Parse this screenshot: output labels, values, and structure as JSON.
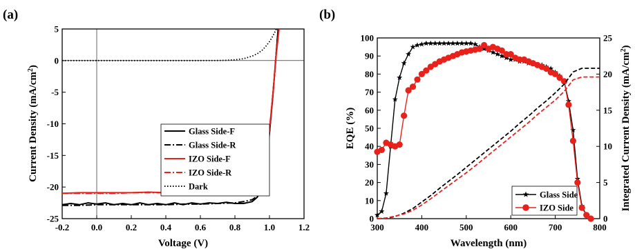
{
  "chart_data": [
    {
      "panel_label": "(a)",
      "type": "line",
      "xlabel": "Voltage (V)",
      "ylabel_main": "Current Density (mA/cm",
      "ylabel_sup": "2",
      "ylabel_end": ")",
      "xlim": [
        -0.2,
        1.2
      ],
      "ylim": [
        -25,
        5
      ],
      "xticks": [
        "-0.2",
        "0.0",
        "0.2",
        "0.4",
        "0.6",
        "0.8",
        "1.0",
        "1.2"
      ],
      "xtick_values": [
        -0.2,
        0,
        0.2,
        0.4,
        0.6,
        0.8,
        1.0,
        1.2
      ],
      "yticks": [
        "-25",
        "-20",
        "-15",
        "-10",
        "-5",
        "0",
        "5"
      ],
      "ytick_values": [
        -25,
        -20,
        -15,
        -10,
        -5,
        0,
        5
      ],
      "legend_position": "right",
      "series": [
        {
          "name": "Glass Side-F",
          "color": "#000000",
          "dash": "solid",
          "x": [
            -0.2,
            -0.15,
            -0.1,
            -0.05,
            0,
            0.05,
            0.1,
            0.15,
            0.2,
            0.25,
            0.3,
            0.35,
            0.4,
            0.45,
            0.5,
            0.55,
            0.6,
            0.65,
            0.7,
            0.75,
            0.8,
            0.85,
            0.9,
            0.93,
            0.96,
            0.98,
            1.0,
            1.02,
            1.04,
            1.05
          ],
          "y": [
            -22.8,
            -22.6,
            -22.8,
            -22.5,
            -22.7,
            -22.5,
            -22.8,
            -22.6,
            -22.8,
            -22.5,
            -22.8,
            -22.6,
            -22.8,
            -22.5,
            -22.8,
            -22.5,
            -22.7,
            -22.5,
            -22.6,
            -22.4,
            -22.6,
            -22.6,
            -22.3,
            -21.6,
            -19.5,
            -16.5,
            -11.5,
            -5.5,
            1.5,
            5.0
          ]
        },
        {
          "name": "Glass Side-R",
          "color": "#000000",
          "dash": "dashdot",
          "x": [
            -0.2,
            -0.1,
            0,
            0.1,
            0.2,
            0.3,
            0.4,
            0.5,
            0.6,
            0.7,
            0.8,
            0.85,
            0.9,
            0.93,
            0.96,
            0.98,
            1.0,
            1.02,
            1.04,
            1.05
          ],
          "y": [
            -22.9,
            -22.9,
            -22.8,
            -22.8,
            -22.8,
            -22.8,
            -22.8,
            -22.7,
            -22.7,
            -22.6,
            -22.5,
            -22.3,
            -22.0,
            -21.4,
            -19.4,
            -16.3,
            -11.3,
            -5.3,
            1.6,
            5.0
          ]
        },
        {
          "name": "IZO Side-F",
          "color": "#e8211b",
          "dash": "solid",
          "x": [
            -0.2,
            -0.1,
            0,
            0.1,
            0.2,
            0.3,
            0.4,
            0.5,
            0.6,
            0.7,
            0.8,
            0.85,
            0.9,
            0.93,
            0.96,
            0.98,
            1.0,
            1.02,
            1.04,
            1.055
          ],
          "y": [
            -21.0,
            -20.9,
            -20.9,
            -20.9,
            -20.9,
            -20.8,
            -20.9,
            -20.8,
            -20.8,
            -20.8,
            -20.7,
            -20.5,
            -20.1,
            -19.4,
            -17.8,
            -15.3,
            -11.0,
            -5.2,
            1.2,
            5.0
          ]
        },
        {
          "name": "IZO Side-R",
          "color": "#e8211b",
          "dash": "dashdot",
          "x": [
            -0.2,
            -0.1,
            0,
            0.1,
            0.2,
            0.3,
            0.4,
            0.5,
            0.6,
            0.7,
            0.8,
            0.85,
            0.9,
            0.93,
            0.96,
            0.98,
            1.0,
            1.02,
            1.04,
            1.055
          ],
          "y": [
            -21.0,
            -21.0,
            -21.0,
            -21.0,
            -20.9,
            -20.9,
            -20.9,
            -20.9,
            -20.8,
            -20.8,
            -20.7,
            -20.5,
            -20.1,
            -19.4,
            -17.8,
            -15.3,
            -11.0,
            -5.2,
            1.2,
            5.0
          ]
        },
        {
          "name": "Dark",
          "color": "#000000",
          "dash": "dotted",
          "x": [
            -0.2,
            0,
            0.2,
            0.4,
            0.6,
            0.7,
            0.75,
            0.8,
            0.85,
            0.9,
            0.93,
            0.96,
            0.98,
            1.0,
            1.02,
            1.04
          ],
          "y": [
            0,
            0,
            0,
            0,
            0,
            0.02,
            0.05,
            0.12,
            0.3,
            0.7,
            1.1,
            1.7,
            2.3,
            3.0,
            3.9,
            5.0
          ]
        }
      ]
    },
    {
      "panel_label": "(b)",
      "type": "line",
      "xlabel": "Wavelength (nm)",
      "ylabel": "EQE (%)",
      "y2label_main": "Integrated Current Density (mA/cm",
      "y2label_sup": "2",
      "y2label_end": ")",
      "xlim": [
        300,
        800
      ],
      "ylim": [
        0,
        100
      ],
      "y2lim": [
        0,
        25
      ],
      "xticks": [
        "300",
        "400",
        "500",
        "600",
        "700",
        "800"
      ],
      "xtick_values": [
        300,
        400,
        500,
        600,
        700,
        800
      ],
      "yticks": [
        "0",
        "10",
        "20",
        "30",
        "40",
        "50",
        "60",
        "70",
        "80",
        "90",
        "100"
      ],
      "ytick_values": [
        0,
        10,
        20,
        30,
        40,
        50,
        60,
        70,
        80,
        90,
        100
      ],
      "y2ticks": [
        "0",
        "5",
        "10",
        "15",
        "20",
        "25"
      ],
      "y2tick_values": [
        0,
        5,
        10,
        15,
        20,
        25
      ],
      "legend_position": "bottom-right",
      "series": [
        {
          "name": "Glass Side",
          "color": "#000000",
          "marker": "star",
          "axis": "left",
          "x": [
            300,
            310,
            320,
            330,
            340,
            350,
            360,
            370,
            380,
            390,
            400,
            410,
            420,
            430,
            440,
            450,
            460,
            470,
            480,
            490,
            500,
            510,
            520,
            530,
            540,
            550,
            560,
            570,
            580,
            590,
            600,
            610,
            620,
            630,
            640,
            650,
            660,
            670,
            680,
            690,
            700,
            710,
            720,
            730,
            740,
            750,
            760,
            770,
            780
          ],
          "y": [
            2,
            4,
            14,
            40,
            66,
            78,
            86,
            91,
            95,
            96,
            96.5,
            97,
            97,
            97,
            97,
            97,
            97,
            97,
            97,
            97,
            97,
            97,
            96.5,
            95,
            94,
            93,
            92,
            91,
            90,
            89,
            88,
            88,
            87,
            87,
            86,
            86,
            85,
            85,
            84,
            83,
            81,
            79,
            76,
            65,
            49,
            22,
            7,
            2,
            0
          ]
        },
        {
          "name": "IZO Side",
          "color": "#e8211b",
          "marker": "circle",
          "axis": "left",
          "x": [
            300,
            310,
            320,
            330,
            340,
            350,
            360,
            370,
            380,
            390,
            400,
            410,
            420,
            430,
            440,
            450,
            460,
            470,
            480,
            490,
            500,
            510,
            520,
            530,
            540,
            550,
            560,
            570,
            580,
            590,
            600,
            610,
            620,
            630,
            640,
            650,
            660,
            670,
            680,
            690,
            700,
            710,
            720,
            730,
            740,
            750,
            760,
            770,
            780
          ],
          "y": [
            37,
            38,
            42,
            41,
            40,
            41,
            57,
            71,
            73,
            77,
            80,
            82,
            84,
            85.5,
            87,
            88,
            89,
            90,
            91,
            92,
            92.5,
            93,
            93.5,
            94,
            96,
            94,
            95,
            94,
            93,
            91,
            91,
            89,
            88,
            88,
            87,
            86,
            85,
            84,
            83,
            81,
            80,
            78,
            76,
            63,
            43,
            20,
            6,
            2,
            0
          ]
        },
        {
          "name": "",
          "color": "#000000",
          "dash": "dashed",
          "axis": "right",
          "x": [
            300,
            320,
            340,
            360,
            380,
            400,
            420,
            440,
            460,
            480,
            500,
            520,
            540,
            560,
            580,
            600,
            620,
            640,
            660,
            680,
            700,
            720,
            740,
            760,
            780,
            800
          ],
          "y": [
            0,
            0.05,
            0.3,
            0.75,
            1.4,
            2.3,
            3.2,
            4.2,
            5.15,
            6.1,
            7.1,
            8.1,
            9.1,
            10.1,
            11.1,
            12.1,
            13.2,
            14.2,
            15.3,
            16.3,
            17.4,
            18.6,
            20.3,
            20.8,
            20.8,
            20.8
          ]
        },
        {
          "name": "",
          "color": "#e8211b",
          "dash": "dashed",
          "axis": "right",
          "x": [
            300,
            320,
            340,
            360,
            380,
            400,
            420,
            440,
            460,
            480,
            500,
            520,
            540,
            560,
            580,
            600,
            620,
            640,
            660,
            680,
            700,
            720,
            740,
            760,
            780,
            800
          ],
          "y": [
            0,
            0.1,
            0.35,
            0.65,
            1.15,
            1.9,
            2.75,
            3.65,
            4.55,
            5.45,
            6.35,
            7.3,
            8.3,
            9.3,
            10.3,
            11.3,
            12.3,
            13.3,
            14.4,
            15.4,
            16.4,
            17.6,
            19.2,
            19.6,
            19.6,
            19.6
          ]
        }
      ]
    }
  ]
}
